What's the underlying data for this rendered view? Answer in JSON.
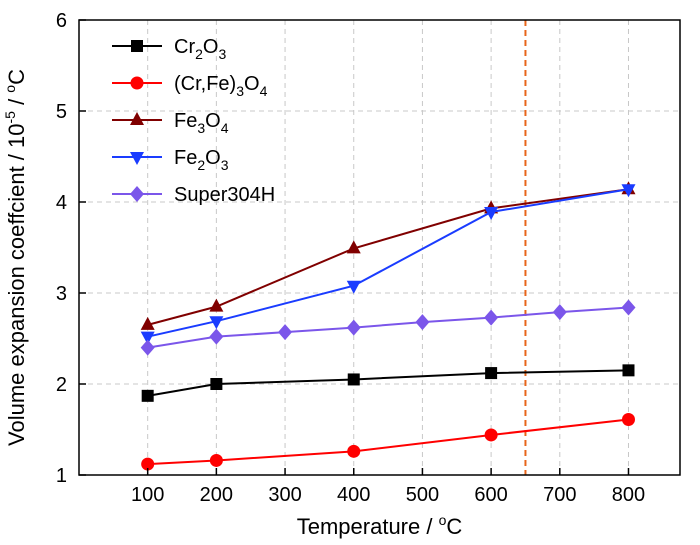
{
  "chart_data": {
    "type": "line",
    "xlabel": {
      "text": "Temperature / ",
      "unit_sup": "o",
      "unit": "C"
    },
    "ylabel": {
      "text": "Volume expansion coeffcient / 10",
      "exp_sup": "-5",
      "unit": " / ",
      "unit_sup": "o",
      "unit_end": "C"
    },
    "xlim": [
      0,
      875
    ],
    "ylim": [
      1,
      6
    ],
    "xticks": [
      100,
      200,
      300,
      400,
      500,
      600,
      700,
      800
    ],
    "yticks": [
      1,
      2,
      3,
      4,
      5,
      6
    ],
    "grid": true,
    "grid_style": "dashed",
    "legend_position": "top-left",
    "reference_line": {
      "x": 650,
      "color": "#e8651a",
      "style": "dashed"
    },
    "series": [
      {
        "name_parts": [
          [
            "Cr",
            ""
          ],
          [
            "2",
            "sub"
          ],
          [
            "O",
            ""
          ],
          [
            "3",
            "sub"
          ]
        ],
        "color": "#000000",
        "marker": "square",
        "x": [
          100,
          200,
          400,
          600,
          800
        ],
        "y": [
          1.87,
          2.0,
          2.05,
          2.12,
          2.15
        ]
      },
      {
        "name_parts": [
          [
            "(Cr,Fe)",
            ""
          ],
          [
            "3",
            "sub"
          ],
          [
            "O",
            ""
          ],
          [
            "4",
            "sub"
          ]
        ],
        "color": "#ff0000",
        "marker": "circle",
        "x": [
          100,
          200,
          400,
          600,
          800
        ],
        "y": [
          1.12,
          1.16,
          1.26,
          1.44,
          1.61
        ]
      },
      {
        "name_parts": [
          [
            "Fe",
            ""
          ],
          [
            "3",
            "sub"
          ],
          [
            "O",
            ""
          ],
          [
            "4",
            "sub"
          ]
        ],
        "color": "#800000",
        "marker": "triangle-up",
        "x": [
          100,
          200,
          400,
          600,
          800
        ],
        "y": [
          2.65,
          2.85,
          3.49,
          3.93,
          4.14
        ]
      },
      {
        "name_parts": [
          [
            "Fe",
            ""
          ],
          [
            "2",
            "sub"
          ],
          [
            "O",
            ""
          ],
          [
            "3",
            "sub"
          ]
        ],
        "color": "#1a3cff",
        "marker": "triangle-down",
        "x": [
          100,
          200,
          400,
          600,
          800
        ],
        "y": [
          2.52,
          2.69,
          3.08,
          3.89,
          4.14
        ]
      },
      {
        "name_parts": [
          [
            "Super304H",
            ""
          ]
        ],
        "color": "#7b56ea",
        "marker": "diamond",
        "x": [
          100,
          200,
          300,
          400,
          500,
          600,
          700,
          800
        ],
        "y": [
          2.4,
          2.52,
          2.57,
          2.62,
          2.68,
          2.73,
          2.79,
          2.84
        ]
      }
    ]
  }
}
